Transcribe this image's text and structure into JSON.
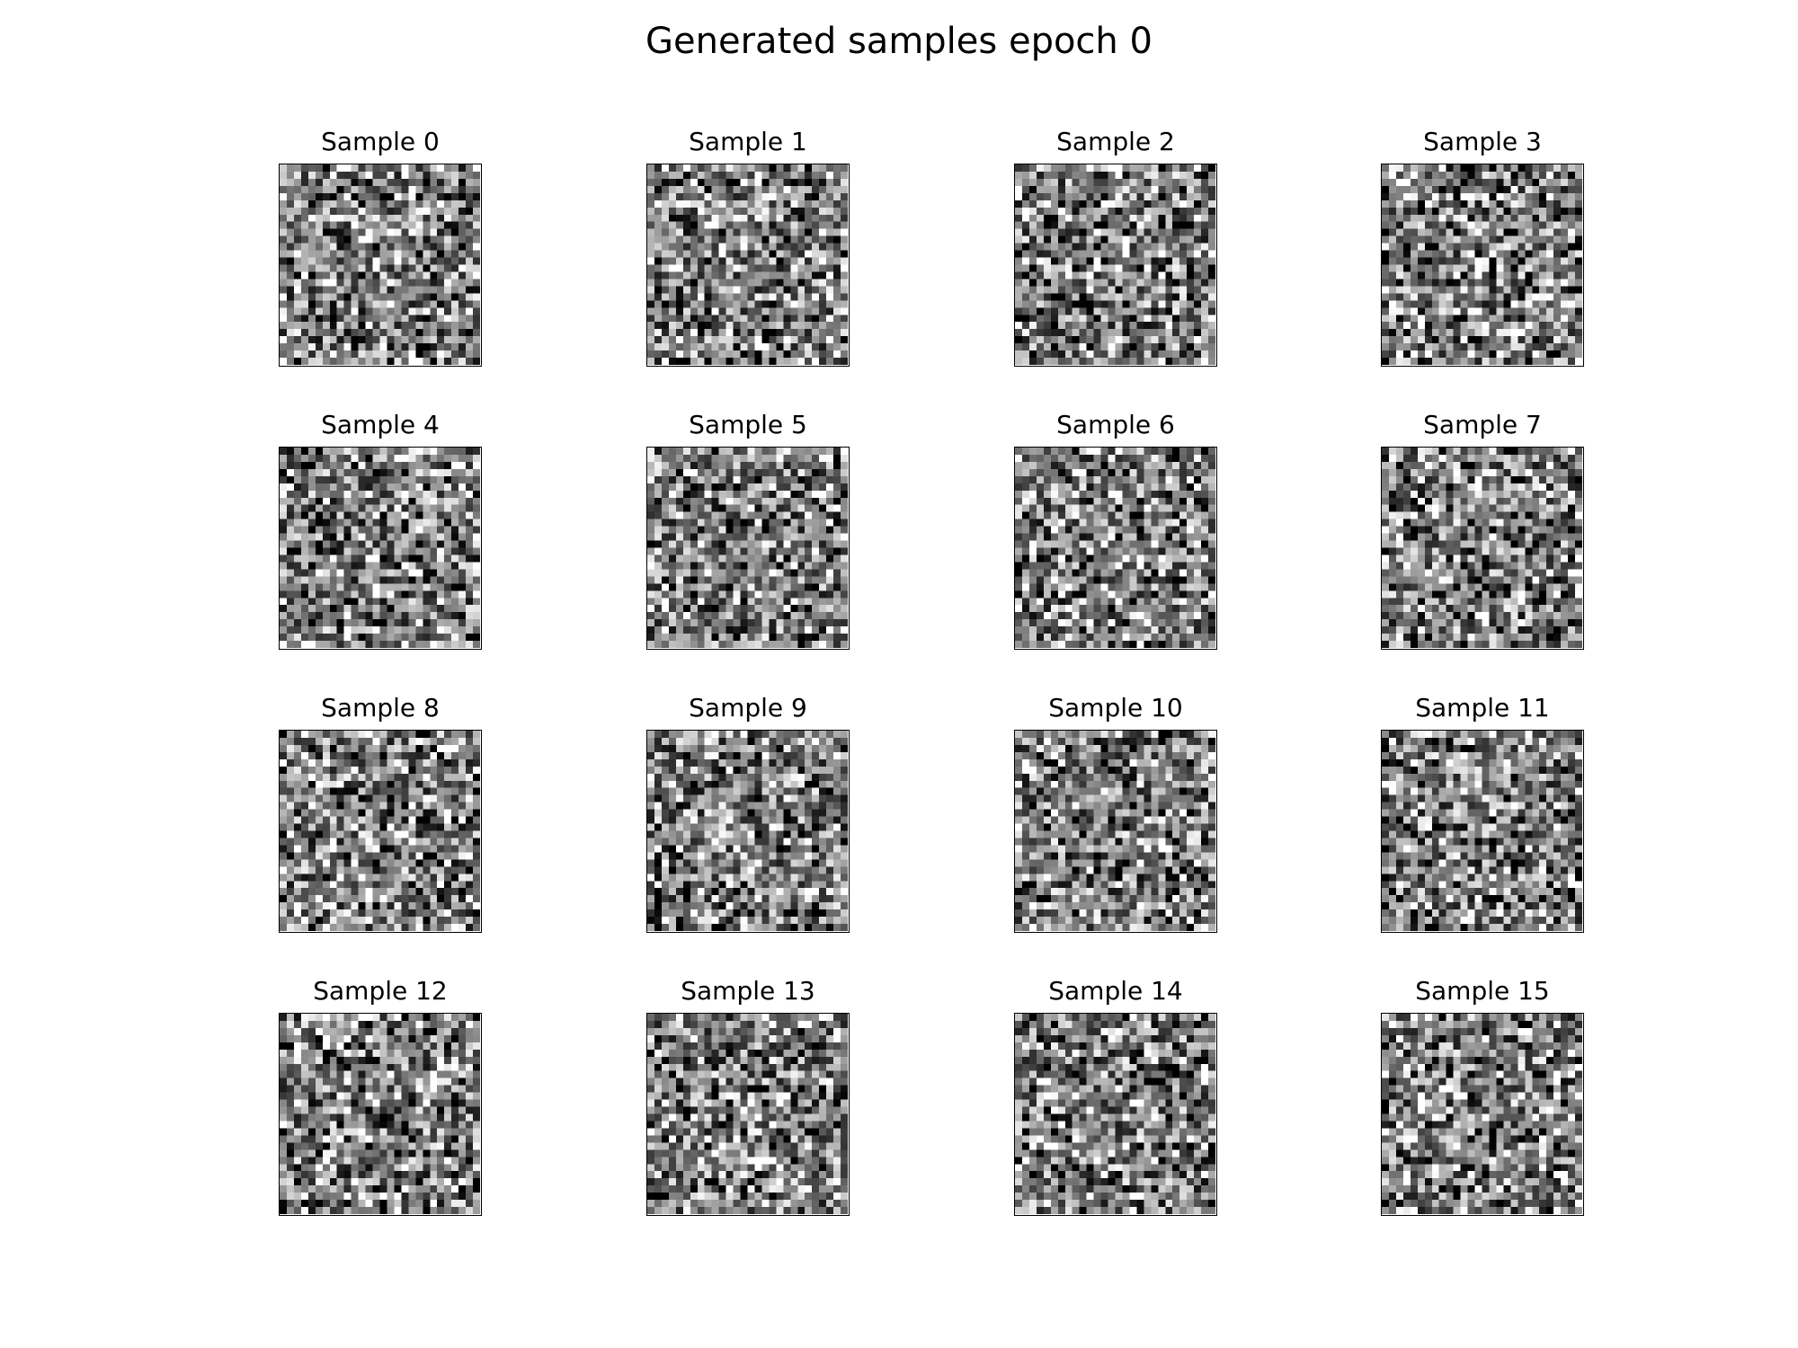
{
  "figure": {
    "title": "Generated samples epoch 0"
  },
  "samples": [
    {
      "label": "Sample 0"
    },
    {
      "label": "Sample 1"
    },
    {
      "label": "Sample 2"
    },
    {
      "label": "Sample 3"
    },
    {
      "label": "Sample 4"
    },
    {
      "label": "Sample 5"
    },
    {
      "label": "Sample 6"
    },
    {
      "label": "Sample 7"
    },
    {
      "label": "Sample 8"
    },
    {
      "label": "Sample 9"
    },
    {
      "label": "Sample 10"
    },
    {
      "label": "Sample 11"
    },
    {
      "label": "Sample 12"
    },
    {
      "label": "Sample 13"
    },
    {
      "label": "Sample 14"
    },
    {
      "label": "Sample 15"
    }
  ],
  "image_style": {
    "colormap": "gray",
    "grid_size": 28,
    "content": "random noise"
  }
}
